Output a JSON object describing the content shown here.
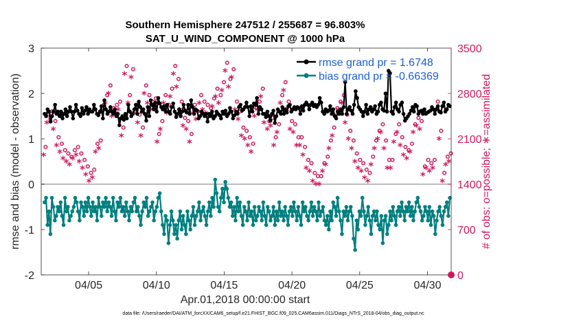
{
  "chart_data": {
    "type": "line",
    "title": "Southern Hemisphere 247512 / 255687 = 96.803%",
    "subtitle": "SAT_U_WIND_COMPONENT @ 1000 hPa",
    "xlabel": "Apr.01,2018 00:00:00 start",
    "ylabel_left": "rmse and bias (model - observation)",
    "ylabel_right": "# of obs: o=possible; ∗=assimilated",
    "footnote": "data file: /Users/raeder/DAI/ATM_forcXX/CAM6_setup/f.e21.FHIST_BGC.f09_025.CAM6assim.011/Diags_NTrS_2018-04/obs_diag_output.nc",
    "x_unit": "days since Apr.01,2018 00:00",
    "xlim": [
      0.5,
      30.75
    ],
    "ylim_left": [
      -2,
      3
    ],
    "ylim_right": [
      0,
      3500
    ],
    "x_ticks": [
      4,
      9,
      14,
      19,
      24,
      29
    ],
    "x_tick_labels": [
      "04/05",
      "04/10",
      "04/15",
      "04/20",
      "04/25",
      "04/30"
    ],
    "y_ticks_left": [
      -2,
      -1,
      0,
      1,
      2,
      3
    ],
    "y_tick_labels_left": [
      "-2",
      "-1",
      "0",
      "1",
      "2",
      "3"
    ],
    "y_ticks_right": [
      0,
      700,
      1400,
      2100,
      2800,
      3500
    ],
    "y_tick_labels_right": [
      "0",
      "700",
      "1400",
      "2100",
      "2800",
      "3500"
    ],
    "legend": [
      {
        "label": "rmse grand pr = 1.6748",
        "color": "#000000"
      },
      {
        "label": "bias grand pr = -0.66369",
        "color": "#007f7f"
      }
    ],
    "rmse": [
      1.55,
      1.5,
      1.65,
      1.6,
      1.38,
      1.5,
      1.6,
      1.75,
      1.55,
      1.6,
      1.5,
      1.6,
      1.45,
      1.55,
      1.65,
      1.5,
      1.6,
      1.7,
      1.6,
      1.45,
      1.6,
      1.75,
      1.62,
      1.55,
      1.5,
      1.68,
      1.55,
      1.62,
      1.7,
      1.55,
      1.65,
      1.6,
      1.6,
      1.75,
      1.65,
      1.55,
      1.52,
      1.6,
      1.72,
      1.45,
      1.85,
      1.65,
      1.55,
      1.6,
      1.7,
      1.6,
      1.55,
      1.65,
      1.5,
      1.55,
      1.3,
      1.45,
      1.5,
      1.42,
      1.55,
      1.45,
      1.75,
      1.6,
      1.5,
      1.55,
      1.65,
      1.75,
      1.55,
      1.82,
      1.7,
      1.6,
      1.65,
      1.55,
      1.4,
      1.7,
      1.5,
      1.85,
      1.75,
      1.65,
      1.8,
      1.6,
      1.9,
      1.78,
      1.7,
      1.65,
      1.72,
      1.6,
      1.75,
      1.6,
      1.55,
      1.7,
      1.78,
      1.6,
      1.48,
      1.55,
      1.65,
      1.5,
      1.6,
      1.75,
      1.62,
      1.58,
      1.75,
      1.55,
      1.85,
      1.7,
      1.55,
      1.65,
      1.62,
      1.45,
      1.5,
      1.6,
      1.55,
      1.5,
      1.55,
      1.38,
      1.55,
      1.5,
      1.6,
      1.45,
      1.5,
      1.6,
      1.55,
      1.52,
      1.45,
      1.6,
      1.55,
      1.62,
      1.5,
      1.55,
      1.68,
      1.6,
      1.45,
      1.52,
      1.6,
      1.55,
      1.7,
      1.75,
      1.62,
      1.65,
      1.7,
      1.8,
      1.7,
      1.5,
      1.72,
      1.6,
      1.78,
      1.75,
      1.9,
      1.55,
      1.7,
      1.65,
      1.55,
      1.55,
      1.48,
      1.6,
      1.5,
      1.4,
      1.55,
      1.62,
      1.35,
      1.5,
      1.65,
      1.6,
      1.55,
      1.7,
      1.55,
      1.65,
      1.58,
      1.72,
      1.75,
      1.6,
      1.65,
      1.7,
      1.65,
      1.7,
      1.68,
      1.55,
      1.72,
      1.62,
      1.75,
      1.8,
      1.75,
      1.65,
      1.75,
      1.8,
      1.72,
      1.75,
      1.7,
      1.75,
      1.9,
      1.8,
      1.6,
      1.55,
      1.65,
      1.6,
      1.62,
      1.72,
      1.55,
      1.65,
      1.5,
      1.45,
      1.6,
      1.55,
      1.65,
      1.55,
      1.7,
      2.25,
      1.55,
      1.65,
      1.7,
      1.62,
      1.55,
      1.75,
      2.05,
      1.9,
      1.7,
      1.65,
      1.6,
      1.5,
      1.6,
      1.75,
      1.55,
      1.65,
      1.7,
      1.6,
      1.65,
      1.72,
      1.55,
      1.6,
      1.75,
      1.8,
      1.65,
      1.62,
      2.0,
      1.6,
      2.5,
      2.45,
      1.6,
      1.55,
      1.7,
      1.8,
      1.65,
      1.6,
      1.75,
      1.8,
      1.55,
      1.4,
      1.45,
      1.5,
      1.55,
      1.62,
      1.7,
      1.6,
      1.75,
      1.72,
      1.55,
      1.6,
      1.62,
      1.55,
      1.65,
      1.55,
      1.58,
      1.6,
      1.62,
      1.7,
      1.65,
      1.55,
      1.65,
      1.72,
      1.6,
      1.58,
      1.72,
      1.8,
      1.6,
      1.65,
      1.75,
      1.72
    ],
    "bias": [
      -0.4,
      -0.3,
      -0.9,
      -0.6,
      -1.1,
      -0.3,
      -0.5,
      -0.8,
      -0.7,
      -0.5,
      -0.6,
      -0.4,
      -0.7,
      -0.9,
      -0.3,
      -0.6,
      -0.5,
      -0.8,
      -0.7,
      -0.6,
      -0.5,
      -0.3,
      -0.4,
      -0.6,
      -0.8,
      -0.4,
      -0.5,
      -0.7,
      -0.4,
      -0.6,
      -0.3,
      -0.5,
      -0.7,
      -0.4,
      -0.6,
      -0.5,
      -0.8,
      -0.3,
      -0.5,
      -0.7,
      -0.4,
      -0.5,
      -0.3,
      -0.6,
      -0.4,
      -0.5,
      -0.7,
      -0.3,
      -0.6,
      -0.8,
      -0.4,
      -0.5,
      -0.3,
      -0.6,
      -0.5,
      -0.7,
      -0.4,
      -0.6,
      -0.8,
      -0.5,
      -0.6,
      -0.4,
      -0.3,
      -0.6,
      -0.5,
      -0.7,
      -0.9,
      -0.6,
      -0.4,
      -0.5,
      -0.3,
      -0.7,
      -0.6,
      -0.5,
      -0.4,
      -0.8,
      -0.6,
      -0.5,
      -0.3,
      -0.2,
      -0.6,
      -0.9,
      -1.1,
      -0.7,
      -0.8,
      -1.3,
      -0.9,
      -0.6,
      -0.8,
      -1.1,
      -0.9,
      -1.2,
      -0.8,
      -0.6,
      -1.0,
      -0.7,
      -0.9,
      -1.1,
      -0.6,
      -0.8,
      -1.0,
      -0.7,
      -0.5,
      -0.9,
      -0.7,
      -0.6,
      -0.4,
      -0.8,
      -0.6,
      -0.5,
      -0.7,
      -0.9,
      -0.6,
      -0.4,
      -0.7,
      -0.3,
      -0.5,
      0.1,
      -0.2,
      -0.5,
      -0.6,
      -0.3,
      -0.1,
      -0.4,
      0.05,
      -0.1,
      -0.3,
      -0.5,
      -0.4,
      -0.7,
      -0.5,
      -0.8,
      -0.3,
      -0.6,
      -0.4,
      -0.7,
      -0.9,
      -0.5,
      -0.6,
      -0.8,
      -0.4,
      -0.7,
      -0.6,
      -0.9,
      -0.5,
      -0.8,
      -0.7,
      -0.5,
      -0.6,
      -0.8,
      -0.4,
      -0.7,
      -0.9,
      -0.5,
      -0.6,
      -0.8,
      -0.7,
      -0.5,
      -0.9,
      -0.6,
      -0.8,
      -0.4,
      -0.7,
      -0.6,
      -0.8,
      -0.5,
      -0.7,
      -0.9,
      -0.6,
      -0.5,
      -0.7,
      -0.4,
      -0.6,
      -0.8,
      -0.5,
      -0.7,
      -0.9,
      -0.4,
      -0.6,
      -0.5,
      -0.7,
      -0.8,
      -0.6,
      -0.4,
      -0.7,
      -0.5,
      -0.6,
      -0.8,
      -0.4,
      -0.7,
      -0.6,
      -0.5,
      -0.8,
      -0.9,
      -0.7,
      -1.0,
      -0.6,
      -0.8,
      -0.4,
      -0.5,
      -0.7,
      -0.3,
      -0.6,
      -0.8,
      -1.1,
      -0.6,
      -0.7,
      -0.5,
      -0.8,
      -0.6,
      -0.5,
      -0.7,
      -1.2,
      -1.45,
      -0.8,
      -1.0,
      -0.6,
      -0.7,
      -0.3,
      -0.6,
      -0.9,
      -0.7,
      -0.5,
      -0.8,
      -1.1,
      -0.7,
      -0.6,
      -0.8,
      -0.6,
      -0.9,
      -1.0,
      -0.7,
      -1.3,
      -0.8,
      -0.7,
      -1.1,
      -0.9,
      -0.6,
      -0.8,
      -0.5,
      -0.7,
      -0.9,
      -0.6,
      -0.5,
      -0.7,
      -0.4,
      -0.6,
      -0.8,
      -0.5,
      -0.6,
      -0.4,
      -0.7,
      -0.5,
      -0.8,
      -0.6,
      -0.4,
      -0.3,
      -0.5,
      -0.6,
      -0.8,
      -0.7,
      -0.5,
      -0.6,
      -0.8,
      -0.5,
      -0.9,
      -0.6,
      -0.7,
      -1.1,
      -0.8,
      -0.6,
      -0.5,
      -0.7,
      -0.9,
      -0.6,
      -0.5,
      -0.4,
      -0.7,
      -0.3
    ],
    "obs_possible": [
      1900,
      2400,
      2450,
      2300,
      2050,
      1950,
      1850,
      1800,
      1750,
      1850,
      1900,
      1800,
      1700,
      1600,
      1500,
      1550,
      1950,
      2000,
      2550,
      2700,
      2850,
      2500,
      2550,
      2600,
      2200,
      3150,
      2700,
      3100,
      2550,
      2400,
      2200,
      2850,
      2700,
      2600,
      2650,
      2100,
      2300,
      2700,
      2550,
      2800,
      3150,
      2950,
      2600,
      2350,
      2300,
      2100,
      2550,
      2450,
      2700,
      2600,
      2550,
      2500,
      2650,
      2800,
      2700,
      2900,
      3200,
      2950,
      3100,
      2600,
      2450,
      2200,
      2150,
      2050,
      1950,
      2500,
      2600,
      2800,
      2400,
      2300,
      2350,
      2050,
      2250,
      2700,
      2900,
      2600,
      2300,
      2250,
      2050,
      2050,
      1900,
      1700,
      1650,
      1500,
      1450,
      1450,
      1650,
      1750,
      2000,
      2200,
      2500,
      2600,
      2700,
      2400,
      2150,
      2000,
      1800,
      1700,
      1650,
      1550,
      1500,
      1750,
      2000,
      2150,
      2250,
      2000,
      1700,
      1700,
      2100,
      2250,
      2050,
      1900,
      1850,
      1950,
      2250,
      2350,
      2300,
      1600,
      1700,
      1650,
      1700,
      2600,
      2150,
      1500,
      1750,
      1800
    ],
    "obs_assimilated": [
      1850,
      2350,
      2400,
      2250,
      2000,
      1900,
      1800,
      1750,
      1700,
      1800,
      1850,
      1750,
      1650,
      1550,
      1450,
      1500,
      1900,
      1950,
      2500,
      2650,
      2800,
      2450,
      2500,
      2550,
      2150,
      3100,
      2650,
      3050,
      2500,
      2350,
      2150,
      2800,
      2650,
      2550,
      2600,
      2050,
      2250,
      2650,
      2500,
      2750,
      3100,
      2900,
      2550,
      2300,
      2250,
      2050,
      2500,
      2400,
      2650,
      2550,
      2500,
      2450,
      2600,
      2750,
      2650,
      2850,
      3150,
      2900,
      3050,
      2550,
      2400,
      2150,
      2100,
      2000,
      1900,
      2450,
      2550,
      2750,
      2350,
      2250,
      2300,
      2000,
      2200,
      2650,
      2850,
      2550,
      2250,
      2200,
      2000,
      2000,
      1850,
      1650,
      1600,
      1450,
      1400,
      1400,
      1600,
      1700,
      1950,
      2150,
      2450,
      2550,
      2650,
      2350,
      2100,
      1950,
      1750,
      1650,
      1600,
      1500,
      1450,
      1700,
      1950,
      2100,
      2200,
      1950,
      1650,
      1650,
      2050,
      2200,
      2000,
      1850,
      1800,
      1900,
      2200,
      2300,
      2250,
      1550,
      1650,
      1600,
      1650,
      2550,
      2100,
      1450,
      1700,
      1750
    ]
  }
}
